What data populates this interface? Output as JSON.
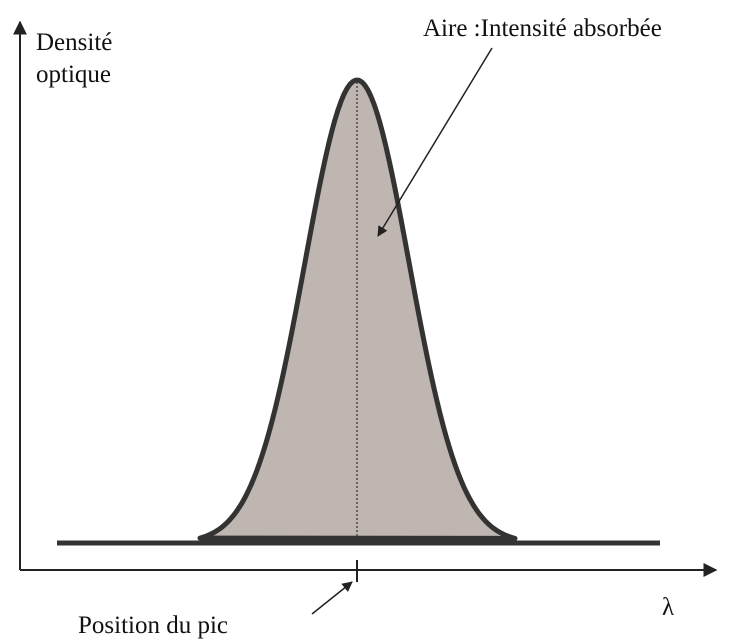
{
  "axis": {
    "y_label": [
      "Densité",
      "optique"
    ],
    "x_label": "λ"
  },
  "annotations": {
    "area": "Aire :Intensité absorbée",
    "peak_position": "Position du pic"
  }
}
